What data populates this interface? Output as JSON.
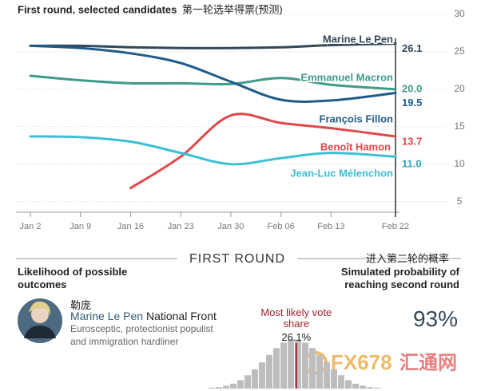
{
  "chart_data": [
    {
      "type": "line",
      "title": "First round, selected candidates",
      "subtitle": "第一轮选举得票(预测)",
      "x": [
        "Jan 2",
        "Jan 9",
        "Jan 16",
        "Jan 23",
        "Jan 30",
        "Feb 06",
        "Feb 13",
        "Feb 22"
      ],
      "series": [
        {
          "name": "Marine Le Pen",
          "color": "#33495a",
          "values": [
            25.8,
            25.8,
            25.6,
            25.5,
            25.5,
            25.6,
            25.9,
            26.1
          ],
          "value_labels": [
            null,
            null,
            null,
            null,
            null,
            null,
            null,
            "26.1"
          ]
        },
        {
          "name": "Emmanuel Macron",
          "color": "#3f9a8a",
          "values": [
            21.8,
            21.2,
            20.8,
            20.8,
            20.7,
            21.5,
            20.6,
            20.0
          ],
          "value_labels": [
            null,
            null,
            null,
            null,
            null,
            null,
            null,
            "20.0"
          ]
        },
        {
          "name": "François Fillon",
          "color": "#1f5c8a",
          "values": [
            25.8,
            25.5,
            24.8,
            23.5,
            21.0,
            18.6,
            18.5,
            19.5
          ],
          "value_labels": [
            null,
            null,
            null,
            null,
            null,
            null,
            null,
            "19.5"
          ]
        },
        {
          "name": "Benoît Hamon",
          "color": "#e0484b",
          "values": [
            null,
            null,
            6.8,
            11.0,
            16.5,
            15.5,
            14.8,
            13.7
          ],
          "value_labels": [
            null,
            null,
            null,
            null,
            null,
            null,
            null,
            "13.7"
          ]
        },
        {
          "name": "Jean-Luc Mélenchon",
          "color": "#3cbfd6",
          "values": [
            13.7,
            13.6,
            13.0,
            11.5,
            10.0,
            10.8,
            11.5,
            11.0
          ],
          "value_labels": [
            null,
            null,
            null,
            null,
            null,
            null,
            null,
            "11.0"
          ]
        }
      ],
      "ylim": [
        4,
        30
      ],
      "yticks": [
        5,
        10,
        15,
        20,
        25,
        30
      ],
      "grid": true
    },
    {
      "type": "histogram",
      "title": "Likelihood of possible outcomes",
      "bins": [
        20,
        20.5,
        21,
        21.5,
        22,
        22.5,
        23,
        23.5,
        24,
        24.5,
        25,
        25.5,
        26,
        26.5,
        27,
        27.5,
        28,
        28.5,
        29,
        29.5,
        30,
        30.5,
        31,
        31.5,
        32
      ],
      "counts": [
        2,
        3,
        6,
        10,
        17,
        27,
        39,
        53,
        68,
        82,
        93,
        99,
        99,
        93,
        82,
        68,
        53,
        39,
        27,
        17,
        10,
        6,
        3,
        2
      ],
      "color": "#bdbdbd",
      "xlim": [
        20,
        32
      ],
      "ylim": [
        0,
        100
      ],
      "marker": {
        "value": 26.1,
        "label": "26.1%",
        "text": "Most likely vote share",
        "color": "#a51d2d"
      }
    }
  ],
  "section": {
    "heading": "FIRST ROUND",
    "heading_cn": "进入第二轮的概率",
    "right_title": "Simulated probability of reaching second round",
    "probability": "93%"
  },
  "candidate": {
    "name_cn": "勒庞",
    "name": "Marine Le Pen",
    "party": "National Front",
    "description": "Eurosceptic, protectionist populist and immigration hardliner"
  },
  "watermark": {
    "text": "FX678",
    "text_cn": "汇通网"
  }
}
